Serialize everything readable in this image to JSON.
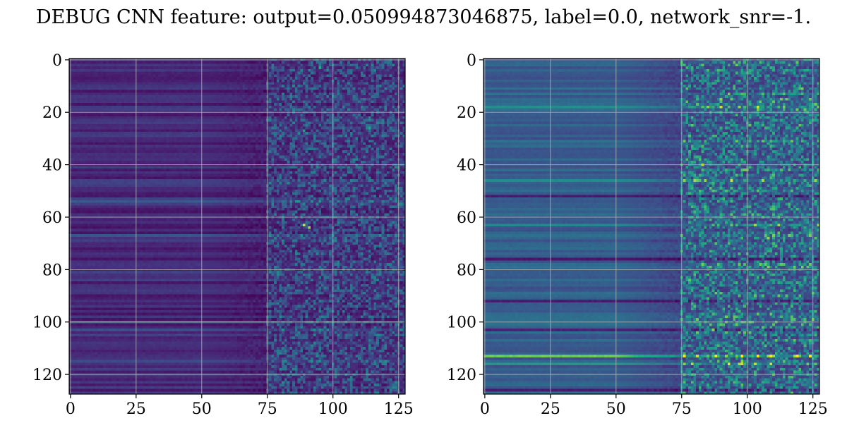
{
  "chart_data": {
    "title": "DEBUG CNN feature: output=0.050994873046875, label=0.0, network_snr=-1.",
    "panels": [
      {
        "type": "heatmap",
        "rows": 128,
        "cols": 128,
        "colormap": "viridis",
        "value_range": [
          0,
          1
        ],
        "grid": true,
        "xlim": [
          0,
          127
        ],
        "ylim": [
          127,
          0
        ],
        "xticks": [
          "0",
          "25",
          "50",
          "75",
          "100",
          "125"
        ],
        "yticks": [
          "0",
          "20",
          "40",
          "60",
          "80",
          "100",
          "120"
        ],
        "smooth_until_col": 75,
        "background_level": 0.15,
        "noise_level": 0.45,
        "bright_rows": [
          {
            "row": 54,
            "level": 0.35
          },
          {
            "row": 67,
            "level": 0.32
          },
          {
            "row": 100,
            "level": 0.4
          },
          {
            "row": 103,
            "level": 0.3
          },
          {
            "row": 115,
            "level": 0.28
          }
        ],
        "hot_cells": [
          {
            "row": 63,
            "col": 89,
            "level": 0.95
          },
          {
            "row": 64,
            "col": 91,
            "level": 0.92
          },
          {
            "row": 27,
            "col": 89,
            "level": 0.7
          },
          {
            "row": 3,
            "col": 95,
            "level": 0.75
          },
          {
            "row": 26,
            "col": 114,
            "level": 0.7
          }
        ]
      },
      {
        "type": "heatmap",
        "rows": 128,
        "cols": 128,
        "colormap": "viridis",
        "value_range": [
          0,
          1
        ],
        "grid": true,
        "xlim": [
          0,
          127
        ],
        "ylim": [
          127,
          0
        ],
        "xticks": [
          "0",
          "25",
          "50",
          "75",
          "100",
          "125"
        ],
        "yticks": [
          "0",
          "20",
          "40",
          "60",
          "80",
          "100",
          "120"
        ],
        "smooth_until_col": 75,
        "background_level": 0.38,
        "noise_level": 0.6,
        "bright_rows": [
          {
            "row": 113,
            "level": 0.85
          },
          {
            "row": 116,
            "level": 0.65
          },
          {
            "row": 18,
            "level": 0.62
          },
          {
            "row": 46,
            "level": 0.6
          },
          {
            "row": 63,
            "level": 0.58
          }
        ],
        "dark_rows": [
          {
            "row": 52,
            "level": 0.1
          },
          {
            "row": 76,
            "level": 0.08
          },
          {
            "row": 92,
            "level": 0.1
          },
          {
            "row": 103,
            "level": 0.12
          },
          {
            "row": 126,
            "level": 0.1
          }
        ],
        "hot_cells": [
          {
            "row": 40,
            "col": 83,
            "level": 0.95
          },
          {
            "row": 15,
            "col": 90,
            "level": 0.9
          },
          {
            "row": 68,
            "col": 108,
            "level": 0.9
          },
          {
            "row": 103,
            "col": 87,
            "level": 0.88
          },
          {
            "row": 115,
            "col": 98,
            "level": 0.9
          },
          {
            "row": 19,
            "col": 119,
            "level": 0.85
          }
        ]
      }
    ]
  }
}
